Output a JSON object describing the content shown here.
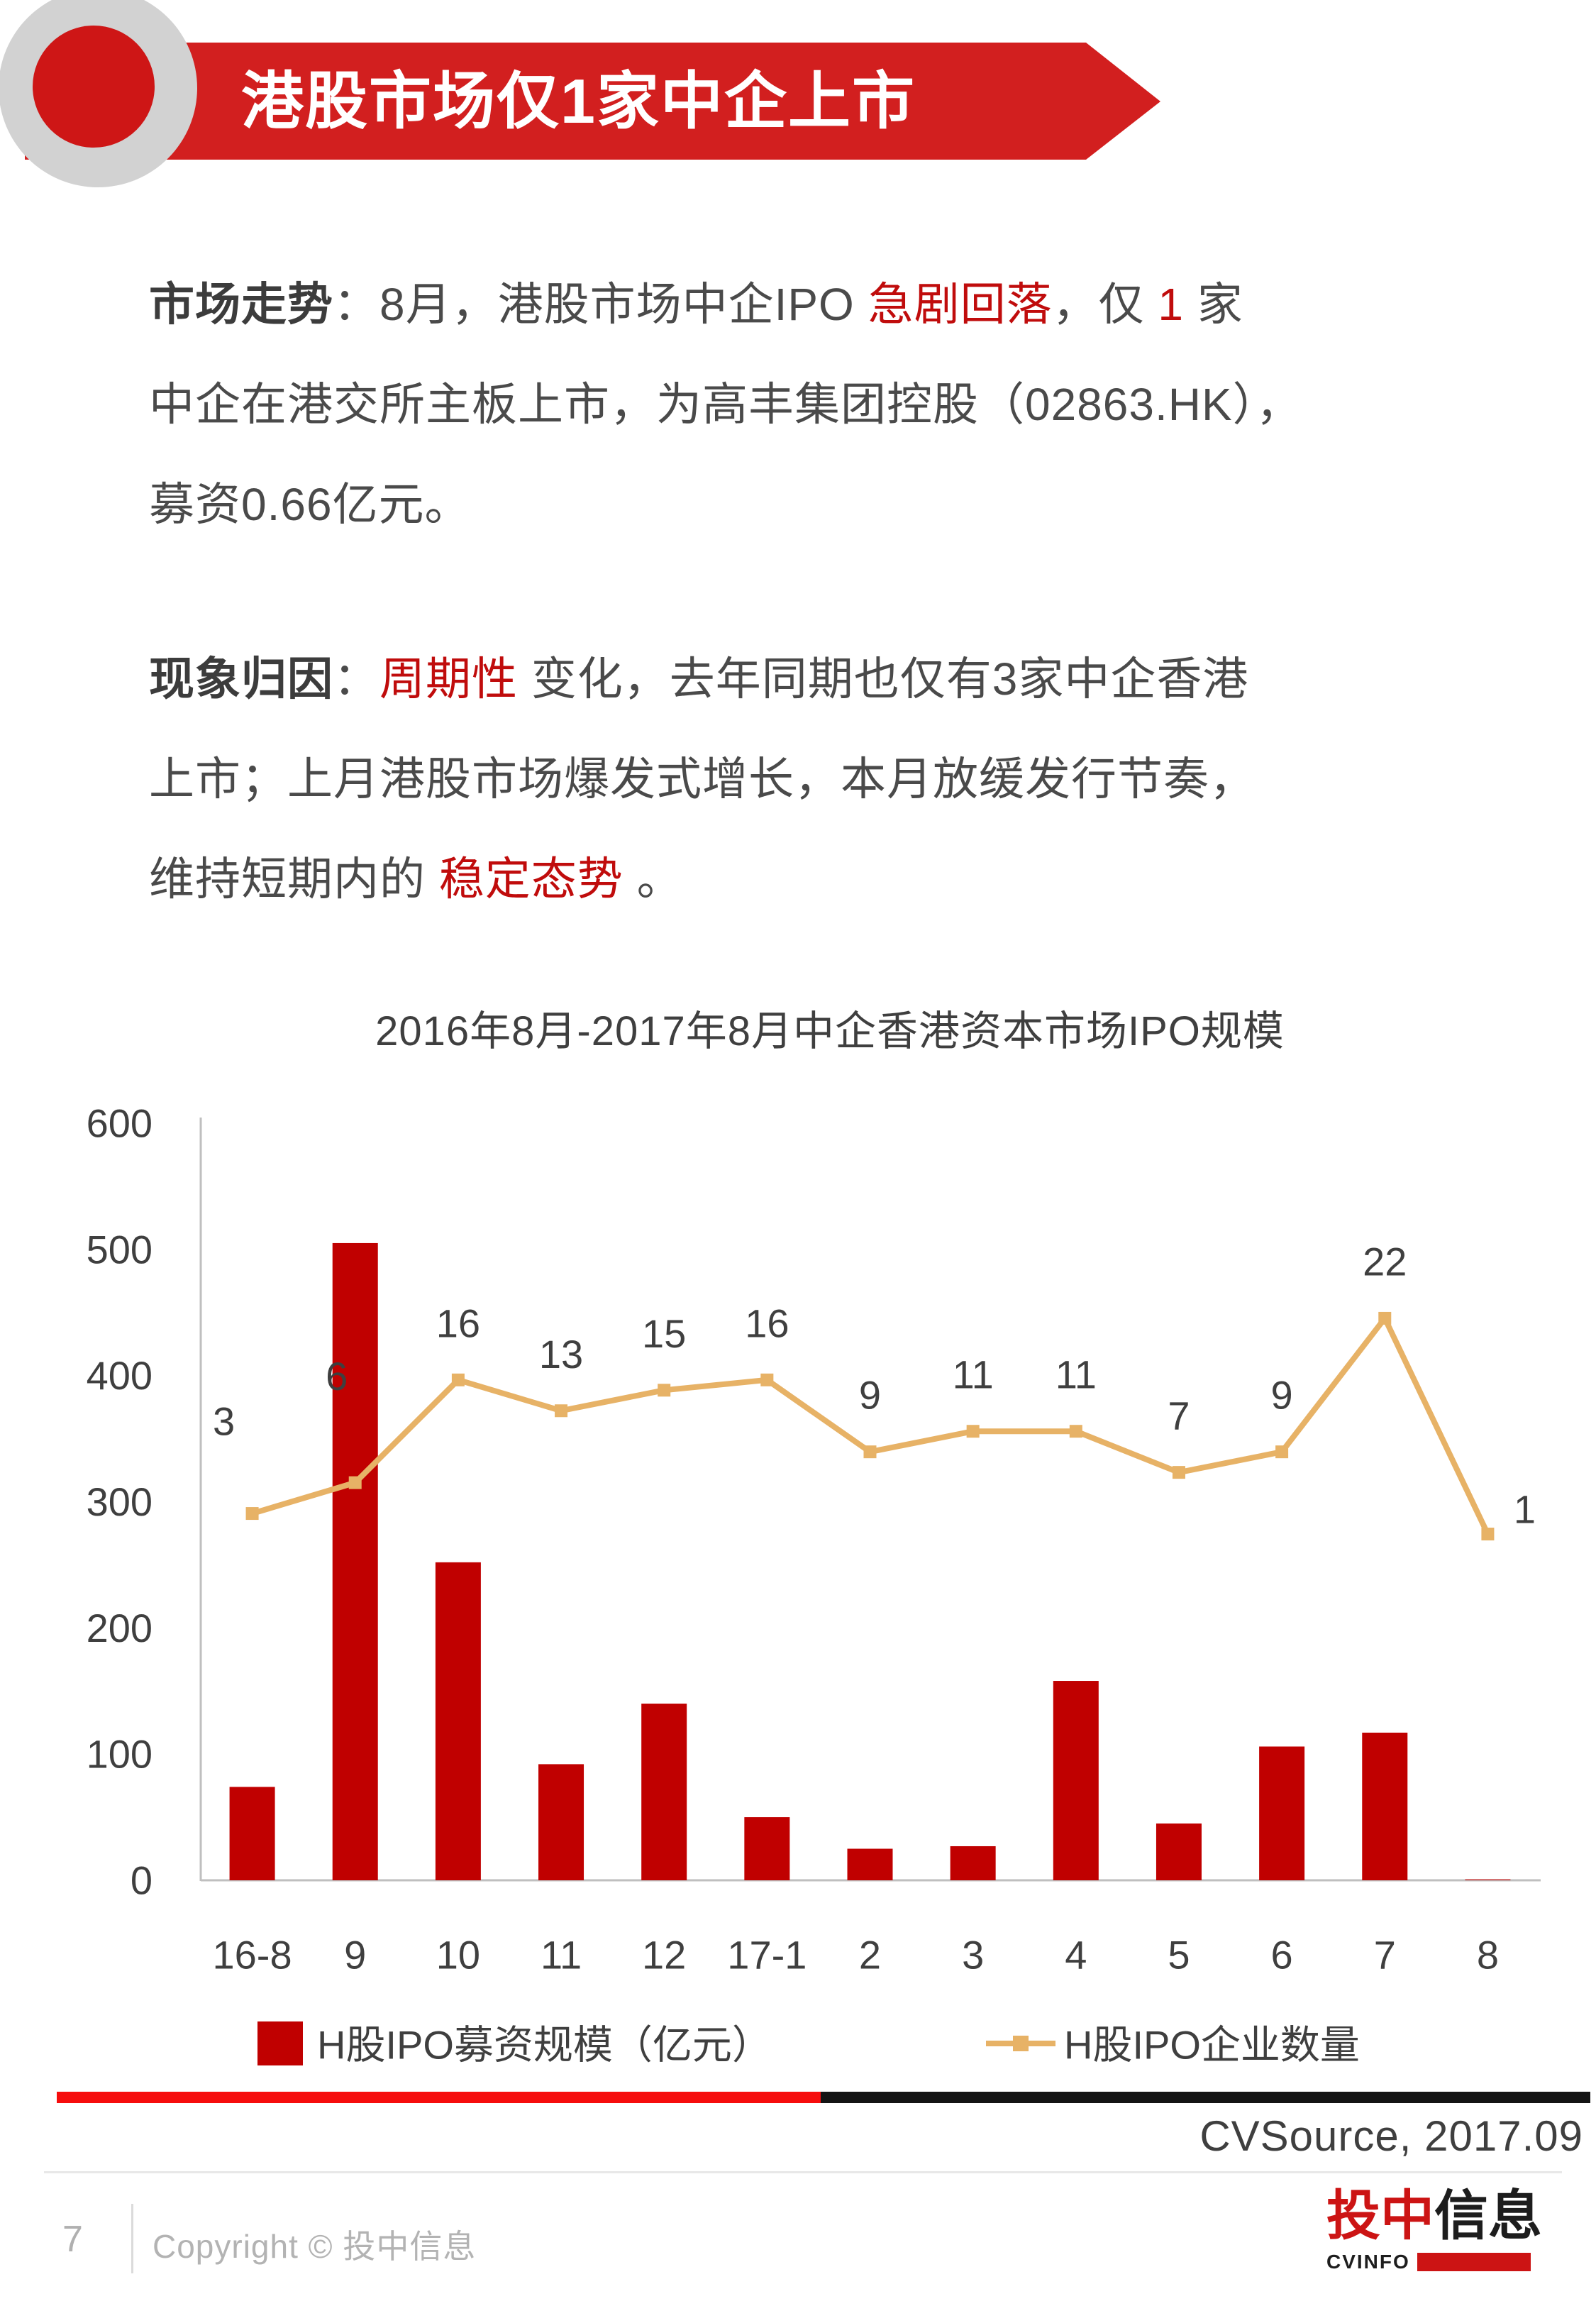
{
  "header": {
    "title": "港股市场仅1家中企上市"
  },
  "paragraphs": {
    "market_trend": [
      {
        "style": "bold",
        "text": "市场走势"
      },
      {
        "style": "normal",
        "text": "：8月，港股市场中企IPO "
      },
      {
        "style": "red",
        "text": "急剧回落"
      },
      {
        "style": "normal",
        "text": "，仅 "
      },
      {
        "style": "red",
        "text": "1"
      },
      {
        "style": "normal",
        "text": " 家\n中企在港交所主板上市，为高丰集团控股（02863.HK），\n募资0.66亿元。"
      }
    ],
    "attribution": [
      {
        "style": "bold",
        "text": "现象归因"
      },
      {
        "style": "normal",
        "text": "："
      },
      {
        "style": "red",
        "text": "周期性"
      },
      {
        "style": "normal",
        "text": " 变化，去年同期也仅有3家中企香港\n上市；上月港股市场爆发式增长，本月放缓发行节奏，\n维持短期内的 "
      },
      {
        "style": "red",
        "text": "稳定态势"
      },
      {
        "style": "normal",
        "text": " 。"
      }
    ]
  },
  "chart_data": {
    "type": "bar+line",
    "title": "2016年8月-2017年8月中企香港资本市场IPO规模",
    "categories": [
      "16-8",
      "9",
      "10",
      "11",
      "12",
      "17-1",
      "2",
      "3",
      "4",
      "5",
      "6",
      "7",
      "8"
    ],
    "series": [
      {
        "name": "H股IPO募资规模（亿元）",
        "type": "bar",
        "color": "#C00000",
        "values": [
          74,
          505,
          252,
          92,
          140,
          50,
          25,
          27,
          158,
          45,
          106,
          117,
          0.66
        ]
      },
      {
        "name": "H股IPO企业数量",
        "type": "line",
        "color": "#E7B266",
        "marker": "square",
        "values": [
          3,
          6,
          16,
          13,
          15,
          16,
          9,
          11,
          11,
          7,
          9,
          22,
          1
        ],
        "data_labels": true
      }
    ],
    "y_axis": {
      "min": 0,
      "max": 600,
      "step": 100,
      "ticks": [
        "0",
        "100",
        "200",
        "300",
        "400",
        "500",
        "600"
      ]
    },
    "secondary_y_axis": {
      "visible": false,
      "note": "line plotted on hidden secondary axis"
    },
    "gridlines": false,
    "legend_position": "bottom",
    "axis_color": "#BFBFBF",
    "label_color": "#3F3F3F"
  },
  "footer": {
    "source": "CVSource, 2017.09",
    "page_number": "7",
    "copyright": "Copyright © 投中信息",
    "logo": {
      "brand_red": "投中",
      "brand_black": "信息",
      "subtext": "CVINFO"
    }
  },
  "colors": {
    "banner_red": "#D21F1F",
    "decor_dot_red": "#CE1616",
    "bar_red": "#C00000",
    "line_gold": "#E7B266",
    "highlight_red": "#C00C0C",
    "footer_divider_red": "#F60D0D",
    "footer_divider_black": "#141414",
    "logo_red": "#CC1414"
  }
}
